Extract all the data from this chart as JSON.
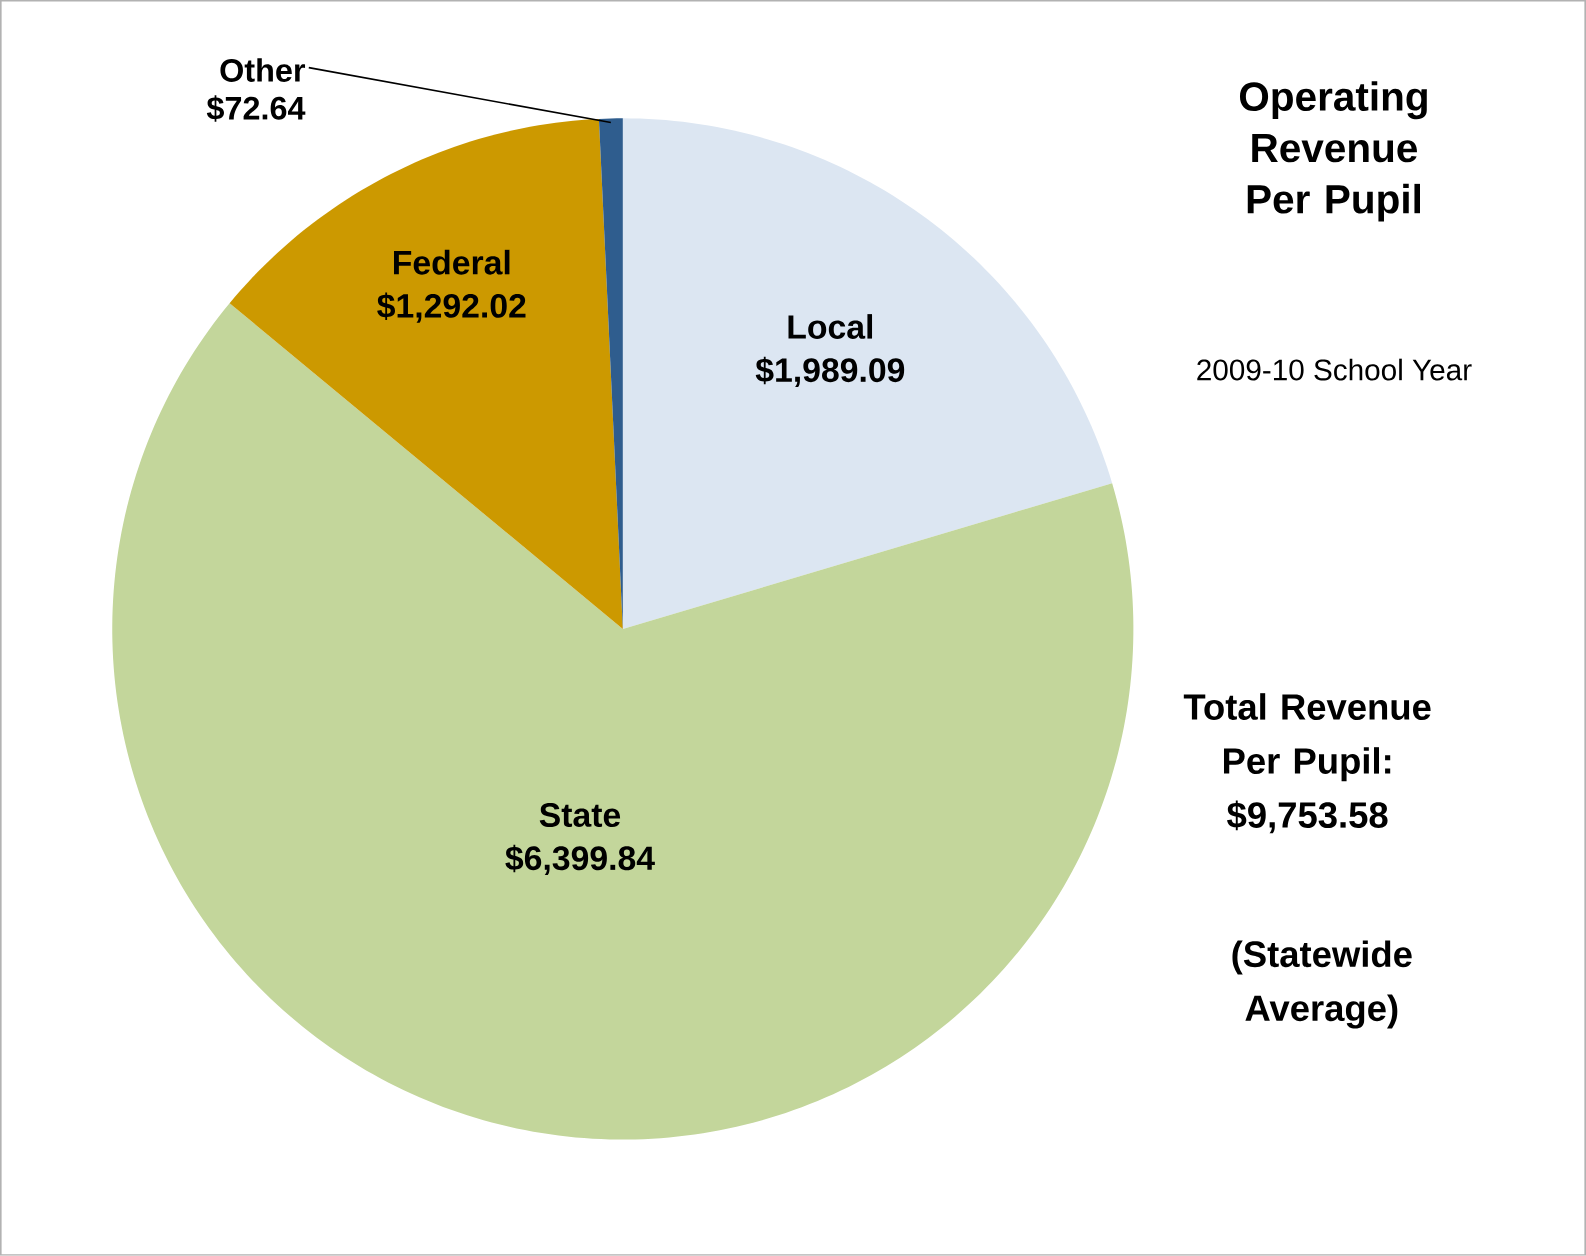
{
  "chart_data": {
    "type": "pie",
    "title": "Operating Revenue Per Pupil",
    "subtitle": "2009-10 School Year",
    "categories": [
      "Local",
      "State",
      "Federal",
      "Other"
    ],
    "values": [
      1989.09,
      6399.84,
      1292.02,
      72.64
    ],
    "value_labels": [
      "$1,989.09",
      "$6,399.84",
      "$1,292.02",
      "$72.64"
    ],
    "colors": [
      "#dce6f2",
      "#c3d69b",
      "#cc9900",
      "#2f5d8e"
    ],
    "annotations": [
      "Total Revenue Per Pupil: $9,753.58",
      "(Statewide Average)"
    ]
  }
}
